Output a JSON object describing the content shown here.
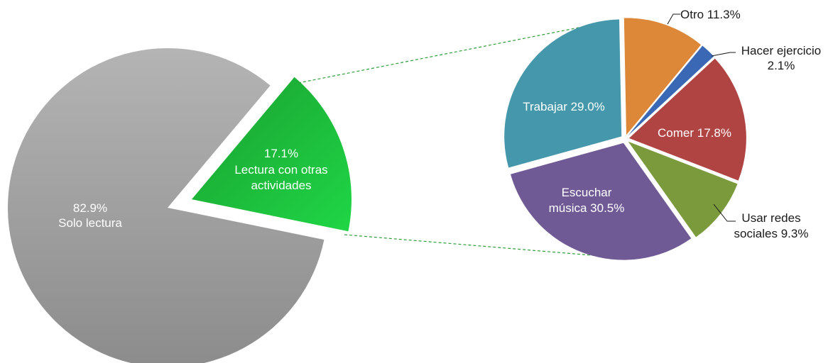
{
  "chart_data": [
    {
      "type": "pie",
      "slices": [
        {
          "label": "Solo lectura",
          "value": 82.9,
          "value_text": "82.9%",
          "color": "#a3a3a3",
          "label_color": "#ffffff"
        },
        {
          "label": "Lectura con otras actividades",
          "value": 17.1,
          "value_text": "17.1%",
          "color": "#19c23a",
          "label_color": "#ffffff",
          "exploded": true
        }
      ]
    },
    {
      "type": "pie",
      "slices": [
        {
          "label": "Trabajar",
          "value": 29.0,
          "value_text": "29.0%",
          "color": "#4597ab",
          "label_color": "#ffffff"
        },
        {
          "label": "Otro",
          "value": 11.3,
          "value_text": "11.3%",
          "color": "#dd8739",
          "label_color": "#1a1a1a"
        },
        {
          "label": "Hacer ejercicio",
          "value": 2.1,
          "value_text": "2.1%",
          "color": "#3a68b4",
          "label_color": "#1a1a1a"
        },
        {
          "label": "Comer",
          "value": 17.8,
          "value_text": "17.8%",
          "color": "#b04443",
          "label_color": "#ffffff"
        },
        {
          "label": "Usar redes sociales",
          "value": 9.3,
          "value_text": "9.3%",
          "color": "#7b9a3c",
          "label_color": "#1a1a1a"
        },
        {
          "label": "Escuchar música",
          "value": 30.5,
          "value_text": "30.5%",
          "color": "#705a96",
          "label_color": "#ffffff"
        }
      ]
    }
  ],
  "labels": {
    "solo_pct": "82.9%",
    "solo_name": "Solo lectura",
    "lectura_pct": "17.1%",
    "lectura_name_1": "Lectura con otras",
    "lectura_name_2": "actividades",
    "trabajar": "Trabajar 29.0%",
    "otro": "Otro 11.3%",
    "ejercicio_1": "Hacer ejercicio",
    "ejercicio_2": "2.1%",
    "comer": "Comer 17.8%",
    "redes_1": "Usar redes",
    "redes_2": "sociales 9.3%",
    "musica_1": "Escuchar",
    "musica_2": "música 30.5%"
  }
}
